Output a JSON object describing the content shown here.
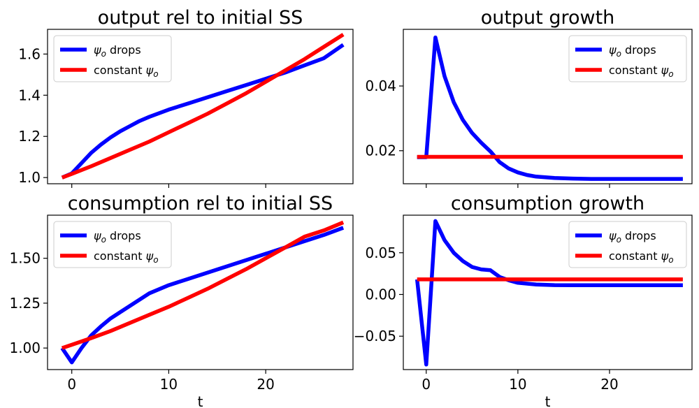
{
  "chart_data": [
    {
      "type": "line",
      "title": "output rel to initial SS",
      "xlabel": "",
      "ylabel": "",
      "xlim": [
        -2.5,
        29
      ],
      "ylim": [
        0.97,
        1.72
      ],
      "xticks": [
        0,
        10,
        20
      ],
      "xtick_labels": [],
      "yticks": [
        1.0,
        1.2,
        1.4,
        1.6
      ],
      "ytick_labels": [
        "1.0",
        "1.2",
        "1.4",
        "1.6"
      ],
      "legend": {
        "placement": "upper-left",
        "entries": [
          {
            "label": "ψo drops"
          },
          {
            "label": "constant ψo"
          }
        ]
      },
      "series": [
        {
          "name": "ψo drops",
          "color": "#0000ff",
          "x": [
            -1,
            0,
            1,
            2,
            3,
            4,
            5,
            6,
            7,
            8,
            10,
            12,
            14,
            16,
            18,
            20,
            22,
            24,
            26,
            28
          ],
          "y": [
            1.0,
            1.02,
            1.07,
            1.12,
            1.16,
            1.195,
            1.225,
            1.25,
            1.275,
            1.295,
            1.33,
            1.36,
            1.39,
            1.42,
            1.45,
            1.48,
            1.51,
            1.545,
            1.58,
            1.645
          ]
        },
        {
          "name": "constant ψo",
          "color": "#ff0000",
          "x": [
            -1,
            0,
            2,
            4,
            6,
            8,
            10,
            12,
            14,
            16,
            18,
            20,
            22,
            24,
            26,
            28
          ],
          "y": [
            1.0,
            1.018,
            1.055,
            1.095,
            1.135,
            1.175,
            1.22,
            1.265,
            1.31,
            1.36,
            1.41,
            1.465,
            1.52,
            1.575,
            1.635,
            1.695
          ]
        }
      ]
    },
    {
      "type": "line",
      "title": "output growth",
      "xlabel": "",
      "ylabel": "",
      "xlim": [
        -2.5,
        29
      ],
      "ylim": [
        0.0098,
        0.0575
      ],
      "xticks": [
        0,
        10,
        20
      ],
      "xtick_labels": [],
      "yticks": [
        0.02,
        0.04
      ],
      "ytick_labels": [
        "0.02",
        "0.04"
      ],
      "legend": {
        "placement": "upper-right",
        "entries": [
          {
            "label": "ψo drops"
          },
          {
            "label": "constant ψo"
          }
        ]
      },
      "series": [
        {
          "name": "ψo drops",
          "color": "#0000ff",
          "x": [
            -1,
            0,
            1,
            2,
            3,
            4,
            5,
            6,
            7,
            8,
            9,
            10,
            11,
            12,
            14,
            16,
            18,
            20,
            22,
            24,
            26,
            28
          ],
          "y": [
            0.018,
            0.018,
            0.055,
            0.043,
            0.035,
            0.0295,
            0.0255,
            0.0225,
            0.0198,
            0.0165,
            0.0145,
            0.0133,
            0.0125,
            0.012,
            0.0116,
            0.0114,
            0.0113,
            0.0113,
            0.0113,
            0.0113,
            0.0113,
            0.0113
          ]
        },
        {
          "name": "constant ψo",
          "color": "#ff0000",
          "x": [
            -1,
            28
          ],
          "y": [
            0.0181,
            0.0181
          ]
        }
      ]
    },
    {
      "type": "line",
      "title": "consumption rel to initial SS",
      "xlabel": "t",
      "ylabel": "",
      "xlim": [
        -2.5,
        29
      ],
      "ylim": [
        0.88,
        1.74
      ],
      "xticks": [
        0,
        10,
        20
      ],
      "xtick_labels": [
        "0",
        "10",
        "20"
      ],
      "yticks": [
        1.0,
        1.25,
        1.5
      ],
      "ytick_labels": [
        "1.00",
        "1.25",
        "1.50"
      ],
      "legend": {
        "placement": "upper-left",
        "entries": [
          {
            "label": "ψo drops"
          },
          {
            "label": "constant ψo"
          }
        ]
      },
      "series": [
        {
          "name": "ψo drops",
          "color": "#0000ff",
          "x": [
            -1,
            0,
            1,
            2,
            3,
            4,
            5,
            6,
            7,
            8,
            10,
            12,
            14,
            16,
            18,
            20,
            22,
            24,
            26,
            28
          ],
          "y": [
            1.0,
            0.92,
            1.0,
            1.07,
            1.12,
            1.165,
            1.2,
            1.235,
            1.27,
            1.305,
            1.35,
            1.385,
            1.42,
            1.455,
            1.49,
            1.525,
            1.56,
            1.595,
            1.63,
            1.67
          ]
        },
        {
          "name": "constant ψo",
          "color": "#ff0000",
          "x": [
            -1,
            0,
            2,
            4,
            6,
            8,
            10,
            12,
            14,
            16,
            18,
            20,
            22,
            24,
            26,
            28
          ],
          "y": [
            1.0,
            1.018,
            1.055,
            1.095,
            1.14,
            1.185,
            1.23,
            1.28,
            1.33,
            1.385,
            1.44,
            1.5,
            1.56,
            1.62,
            1.655,
            1.7
          ]
        }
      ]
    },
    {
      "type": "line",
      "title": "consumption growth",
      "xlabel": "t",
      "ylabel": "",
      "xlim": [
        -2.5,
        29
      ],
      "ylim": [
        -0.09,
        0.095
      ],
      "xticks": [
        0,
        10,
        20
      ],
      "xtick_labels": [
        "0",
        "10",
        "20"
      ],
      "yticks": [
        -0.05,
        0.0,
        0.05
      ],
      "ytick_labels": [
        "−0.05",
        "0.00",
        "0.05"
      ],
      "legend": {
        "placement": "upper-right",
        "entries": [
          {
            "label": "ψo drops"
          },
          {
            "label": "constant ψo"
          }
        ]
      },
      "series": [
        {
          "name": "ψo drops",
          "color": "#0000ff",
          "x": [
            -1,
            0,
            1,
            2,
            3,
            4,
            5,
            6,
            7,
            8,
            9,
            10,
            12,
            14,
            16,
            18,
            20,
            22,
            24,
            26,
            28
          ],
          "y": [
            0.018,
            -0.084,
            0.088,
            0.065,
            0.05,
            0.04,
            0.033,
            0.03,
            0.029,
            0.021,
            0.017,
            0.014,
            0.012,
            0.0112,
            0.011,
            0.011,
            0.011,
            0.011,
            0.011,
            0.011,
            0.011
          ]
        },
        {
          "name": "constant ψo",
          "color": "#ff0000",
          "x": [
            -1,
            28
          ],
          "y": [
            0.0181,
            0.0181
          ]
        }
      ]
    }
  ]
}
